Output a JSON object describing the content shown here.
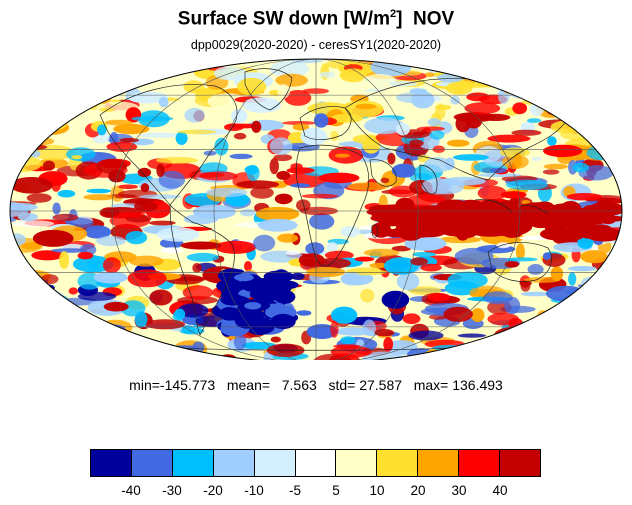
{
  "title": {
    "main": "Surface SW down [W/m",
    "superscript": "2",
    "close": "]",
    "month": "NOV"
  },
  "subtitle": "dpp0029(2020-2020) - ceresSY1(2020-2020)",
  "stats": {
    "min_label": "min=",
    "min": "-145.773",
    "mean_label": "mean=",
    "mean": "7.563",
    "std_label": "std=",
    "std": "27.587",
    "max_label": "max=",
    "max": "136.493"
  },
  "colorbar": {
    "colors": [
      "#00009c",
      "#4169e1",
      "#00bfff",
      "#a0cfff",
      "#d4f0ff",
      "#ffffff",
      "#ffffc8",
      "#ffe030",
      "#ffa500",
      "#ff0000",
      "#c40000"
    ],
    "tick_labels": [
      "-40",
      "-30",
      "-20",
      "-10",
      "-5",
      "5",
      "10",
      "20",
      "30",
      "40"
    ]
  },
  "map": {
    "projection": "mollweide",
    "grid": true
  }
}
